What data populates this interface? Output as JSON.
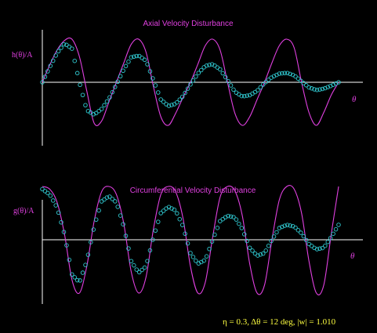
{
  "chart_data": [
    {
      "type": "line",
      "title": "Axial Velocity Disturbance",
      "ylabel": "h(θ)/A",
      "xlabel": "θ",
      "ylim": [
        -1.1,
        1.1
      ],
      "series": [
        {
          "style": "line",
          "color": "#e040e0",
          "x": [
            0,
            0.025,
            0.05,
            0.075,
            0.1,
            0.125,
            0.15,
            0.175,
            0.2,
            0.225,
            0.25,
            0.275,
            0.3,
            0.325,
            0.35,
            0.375,
            0.4,
            0.425,
            0.45,
            0.475,
            0.5,
            0.525,
            0.55,
            0.575,
            0.6,
            0.625,
            0.65,
            0.675,
            0.7,
            0.725,
            0.75,
            0.775,
            0.8,
            0.825,
            0.85,
            0.875,
            0.9,
            0.925,
            0.95,
            0.975,
            1.0
          ],
          "values": [
            0,
            0.4,
            0.75,
            0.97,
            1.0,
            0.6,
            -0.2,
            -0.95,
            -0.9,
            -0.45,
            0.0,
            0.45,
            0.88,
            1.0,
            0.7,
            -0.1,
            -0.8,
            -1.0,
            -0.72,
            -0.35,
            0.0,
            0.42,
            0.85,
            1.0,
            0.75,
            0.0,
            -0.72,
            -1.0,
            -0.8,
            -0.4,
            0.0,
            0.45,
            0.85,
            1.0,
            0.8,
            0.0,
            -0.7,
            -1.0,
            -0.7,
            -0.3,
            0.0
          ]
        },
        {
          "style": "points",
          "color": "#30c8d0",
          "x": [
            0,
            0.025,
            0.05,
            0.075,
            0.1,
            0.125,
            0.15,
            0.175,
            0.2,
            0.225,
            0.25,
            0.275,
            0.3,
            0.325,
            0.35,
            0.375,
            0.4,
            0.425,
            0.45,
            0.475,
            0.5,
            0.525,
            0.55,
            0.575,
            0.6,
            0.625,
            0.65,
            0.675,
            0.7,
            0.725,
            0.75,
            0.775,
            0.8,
            0.825,
            0.85,
            0.875,
            0.9,
            0.925,
            0.95,
            0.975,
            1.0
          ],
          "values": [
            0,
            0.35,
            0.68,
            0.9,
            0.78,
            0.0,
            -0.65,
            -0.75,
            -0.62,
            -0.38,
            -0.05,
            0.3,
            0.58,
            0.62,
            0.5,
            0.05,
            -0.4,
            -0.55,
            -0.5,
            -0.32,
            -0.05,
            0.2,
            0.38,
            0.42,
            0.3,
            0.05,
            -0.22,
            -0.33,
            -0.3,
            -0.2,
            -0.02,
            0.12,
            0.2,
            0.22,
            0.16,
            0.02,
            -0.12,
            -0.18,
            -0.15,
            -0.08,
            0.0
          ]
        }
      ]
    },
    {
      "type": "line",
      "title": "Circumferential Velocity Disturbance",
      "ylabel": "g(θ)/A",
      "xlabel": "θ",
      "ylim": [
        -1.1,
        1.1
      ],
      "series": [
        {
          "style": "line",
          "color": "#e040e0",
          "x": [
            0,
            0.025,
            0.05,
            0.075,
            0.1,
            0.125,
            0.15,
            0.175,
            0.2,
            0.225,
            0.25,
            0.275,
            0.3,
            0.325,
            0.35,
            0.375,
            0.4,
            0.425,
            0.45,
            0.475,
            0.5,
            0.525,
            0.55,
            0.575,
            0.6,
            0.625,
            0.65,
            0.675,
            0.7,
            0.725,
            0.75,
            0.775,
            0.8,
            0.825,
            0.85,
            0.875,
            0.9,
            0.925,
            0.95,
            0.975,
            1.0
          ],
          "values": [
            1.0,
            0.95,
            0.7,
            0.1,
            -0.75,
            -1.0,
            -0.5,
            0.35,
            0.9,
            1.0,
            0.85,
            0.3,
            -0.6,
            -1.0,
            -0.7,
            0.2,
            0.85,
            1.0,
            0.9,
            0.4,
            -0.5,
            -1.0,
            -0.8,
            0.05,
            0.8,
            1.0,
            0.92,
            0.45,
            -0.45,
            -1.0,
            -0.85,
            0.0,
            0.75,
            1.0,
            0.95,
            0.5,
            -0.4,
            -1.0,
            -0.85,
            0.1,
            1.0
          ]
        },
        {
          "style": "points",
          "color": "#30c8d0",
          "x": [
            0,
            0.025,
            0.05,
            0.075,
            0.1,
            0.125,
            0.15,
            0.175,
            0.2,
            0.225,
            0.25,
            0.275,
            0.3,
            0.325,
            0.35,
            0.375,
            0.4,
            0.425,
            0.45,
            0.475,
            0.5,
            0.525,
            0.55,
            0.575,
            0.6,
            0.625,
            0.65,
            0.675,
            0.7,
            0.725,
            0.75,
            0.775,
            0.8,
            0.825,
            0.85,
            0.875,
            0.9,
            0.925,
            0.95,
            0.975,
            1.0
          ],
          "values": [
            0.95,
            0.85,
            0.6,
            0.1,
            -0.65,
            -0.8,
            -0.4,
            0.25,
            0.72,
            0.82,
            0.7,
            0.25,
            -0.4,
            -0.62,
            -0.5,
            0.05,
            0.5,
            0.62,
            0.55,
            0.25,
            -0.25,
            -0.45,
            -0.38,
            0.0,
            0.35,
            0.45,
            0.42,
            0.2,
            -0.15,
            -0.3,
            -0.25,
            0.0,
            0.22,
            0.28,
            0.25,
            0.12,
            -0.08,
            -0.18,
            -0.15,
            0.05,
            0.28
          ]
        }
      ]
    }
  ],
  "footer": {
    "caption": "η = 0.3, Δθ = 12 deg, |w| = 1.010"
  }
}
